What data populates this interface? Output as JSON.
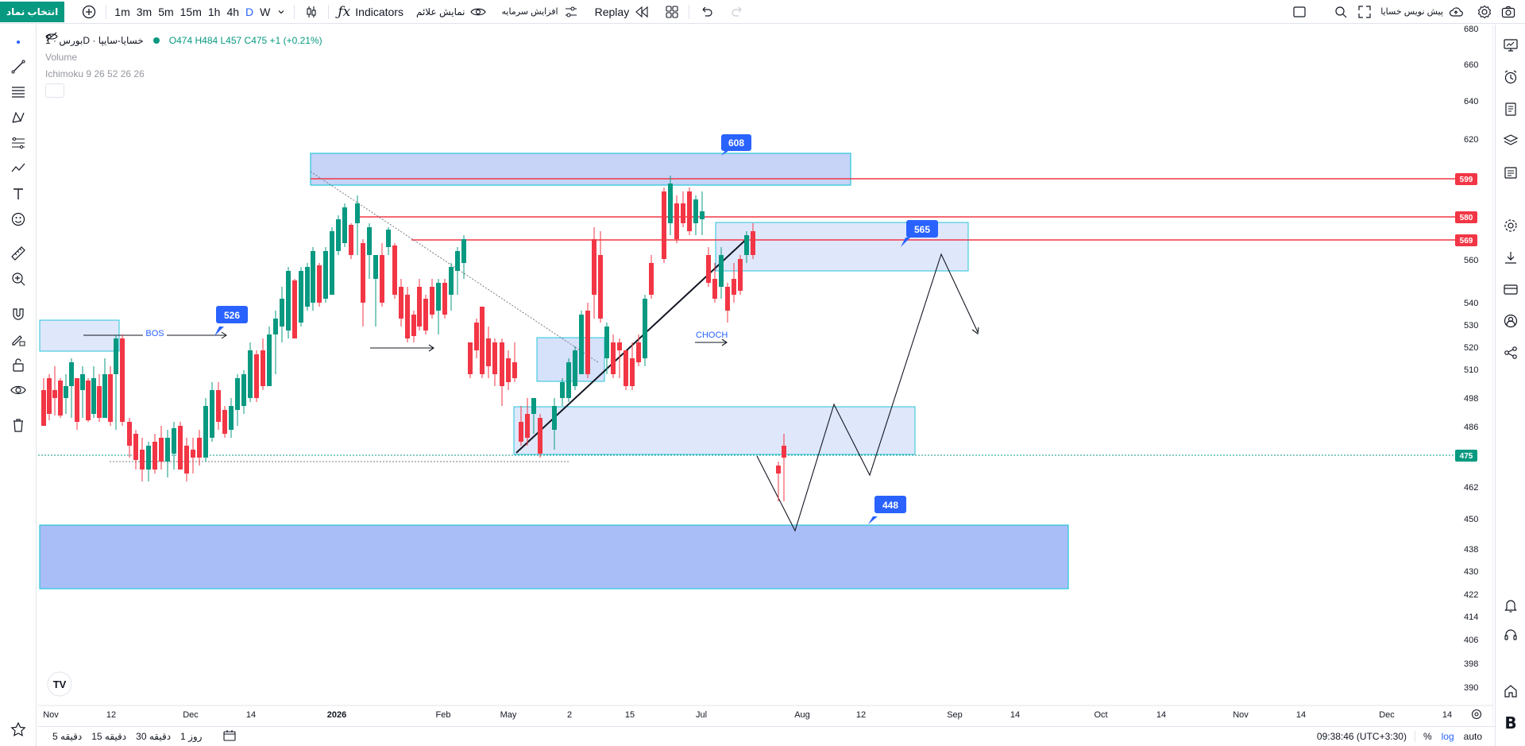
{
  "toolbar": {
    "symbol_button": "انتخاب نماد",
    "timeframes": [
      "1m",
      "3m",
      "5m",
      "15m",
      "1h",
      "4h",
      "D",
      "W"
    ],
    "active_timeframe": "D",
    "indicators_label": "Indicators",
    "show_signals_label": "نمایش علائم",
    "capital_increase_label": "افزایش سرمایه",
    "replay_label": "Replay",
    "presale_label": "پیش نویس خسایا"
  },
  "legend": {
    "symbol": "بورس · 1D · خسایا-سایپا",
    "ohlc": "O474 H484 L457 C475 +1 (+0.21%)",
    "volume_label": "Volume",
    "ichimoku_label": "Ichimoku 9 26 52 26 26"
  },
  "price_axis": {
    "ticks": [
      "680",
      "660",
      "640",
      "620",
      "560",
      "540",
      "530",
      "520",
      "510",
      "498",
      "486",
      "462",
      "450",
      "438",
      "430",
      "422",
      "414",
      "406",
      "398",
      "390"
    ],
    "labels": [
      {
        "text": "599",
        "color": "#f23645"
      },
      {
        "text": "580",
        "color": "#f23645"
      },
      {
        "text": "569",
        "color": "#f23645"
      },
      {
        "text": "475",
        "color": "#089981"
      }
    ]
  },
  "time_axis": {
    "ticks": [
      "Nov",
      "12",
      "Dec",
      "14",
      "2026",
      "Feb",
      "May",
      "2",
      "15",
      "Jul",
      "Aug",
      "12",
      "Sep",
      "14",
      "Oct",
      "14",
      "Nov",
      "14",
      "Dec",
      "14"
    ]
  },
  "annotations": {
    "callouts": [
      "608",
      "565",
      "526",
      "448"
    ],
    "bos_label": "BOS",
    "choch_label": "CHOCH"
  },
  "bottombar": {
    "ranges": [
      "5 دقیقه",
      "15 دقیقه",
      "30 دقیقه",
      "1 روز"
    ],
    "clock": "09:38:46 (UTC+3:30)",
    "percent_label": "%",
    "log_label": "log",
    "auto_label": "auto"
  },
  "colors": {
    "up": "#089981",
    "down": "#f23645",
    "zone_fill": "#c3d0f7",
    "zone_border": "#26c6da",
    "callout": "#2962ff"
  }
}
